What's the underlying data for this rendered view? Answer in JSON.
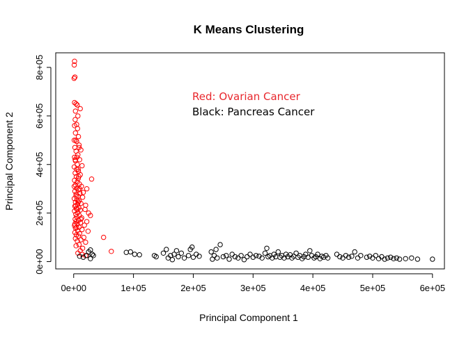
{
  "chart_data": {
    "type": "scatter",
    "title": "K Means Clustering",
    "xlabel": "Principal Component 1",
    "ylabel": "Principal Component 2",
    "xlim": [
      -30000,
      620000
    ],
    "ylim": [
      -30000,
      860000
    ],
    "x_ticks": [
      0,
      100000,
      200000,
      300000,
      400000,
      500000,
      600000
    ],
    "x_tick_labels": [
      "0e+00",
      "1e+05",
      "2e+05",
      "3e+05",
      "4e+05",
      "5e+05",
      "6e+05"
    ],
    "y_ticks": [
      0,
      200000,
      400000,
      600000,
      800000
    ],
    "y_tick_labels": [
      "0e+00",
      "2e+05",
      "4e+05",
      "6e+05",
      "8e+05"
    ],
    "grid": false,
    "legend": "none",
    "annotations": [
      {
        "text": "Red: Ovarian Cancer",
        "color": "#e8272d"
      },
      {
        "text": "Black: Pancreas Cancer",
        "color": "#000000"
      }
    ],
    "series": [
      {
        "color": "#ff0000",
        "points": [
          [
            1500,
            825000
          ],
          [
            1000,
            810000
          ],
          [
            2000,
            760000
          ],
          [
            800,
            755000
          ],
          [
            1500,
            655000
          ],
          [
            4000,
            650000
          ],
          [
            6000,
            645000
          ],
          [
            11000,
            630000
          ],
          [
            3000,
            620000
          ],
          [
            7000,
            600000
          ],
          [
            2500,
            585000
          ],
          [
            5000,
            565000
          ],
          [
            1500,
            560000
          ],
          [
            6500,
            548000
          ],
          [
            3000,
            530000
          ],
          [
            8000,
            515000
          ],
          [
            1000,
            500000
          ],
          [
            5000,
            495000
          ],
          [
            9000,
            480000
          ],
          [
            2000,
            470000
          ],
          [
            12000,
            460000
          ],
          [
            4000,
            455000
          ],
          [
            7000,
            440000
          ],
          [
            1500,
            430000
          ],
          [
            10000,
            420000
          ],
          [
            3000,
            415000
          ],
          [
            6000,
            400000
          ],
          [
            14000,
            395000
          ],
          [
            1000,
            390000
          ],
          [
            5000,
            380000
          ],
          [
            8000,
            372000
          ],
          [
            2500,
            365000
          ],
          [
            11000,
            358000
          ],
          [
            4500,
            350000
          ],
          [
            7500,
            342000
          ],
          [
            30000,
            340000
          ],
          [
            1500,
            335000
          ],
          [
            6000,
            328000
          ],
          [
            9500,
            320000
          ],
          [
            3000,
            315000
          ],
          [
            13000,
            310000
          ],
          [
            5000,
            302000
          ],
          [
            22000,
            300000
          ],
          [
            8000,
            295000
          ],
          [
            2000,
            290000
          ],
          [
            10500,
            282000
          ],
          [
            4000,
            278000
          ],
          [
            7000,
            270000
          ],
          [
            15000,
            265000
          ],
          [
            1000,
            260000
          ],
          [
            5500,
            255000
          ],
          [
            9000,
            250000
          ],
          [
            3000,
            245000
          ],
          [
            12000,
            240000
          ],
          [
            6500,
            235000
          ],
          [
            20000,
            232000
          ],
          [
            2000,
            228000
          ],
          [
            8500,
            222000
          ],
          [
            4500,
            218000
          ],
          [
            11000,
            212000
          ],
          [
            1500,
            208000
          ],
          [
            7000,
            202000
          ],
          [
            25000,
            200000
          ],
          [
            3500,
            195000
          ],
          [
            9500,
            190000
          ],
          [
            5000,
            185000
          ],
          [
            13500,
            180000
          ],
          [
            2500,
            175000
          ],
          [
            8000,
            170000
          ],
          [
            28000,
            190000
          ],
          [
            4000,
            165000
          ],
          [
            11500,
            160000
          ],
          [
            6000,
            155000
          ],
          [
            18000,
            150000
          ],
          [
            1500,
            148000
          ],
          [
            9000,
            142000
          ],
          [
            3000,
            138000
          ],
          [
            14000,
            132000
          ],
          [
            6500,
            128000
          ],
          [
            24000,
            125000
          ],
          [
            2000,
            120000
          ],
          [
            10000,
            115000
          ],
          [
            4500,
            110000
          ],
          [
            8000,
            105000
          ],
          [
            17000,
            100000
          ],
          [
            50000,
            100000
          ],
          [
            3000,
            95000
          ],
          [
            12000,
            90000
          ],
          [
            6000,
            85000
          ],
          [
            20000,
            80000
          ],
          [
            9000,
            70000
          ],
          [
            4000,
            65000
          ],
          [
            15000,
            55000
          ],
          [
            11000,
            45000
          ],
          [
            63000,
            42000
          ],
          [
            7000,
            35000
          ],
          [
            14000,
            30000
          ],
          [
            20000,
            25000
          ],
          [
            2500,
            420000
          ],
          [
            7500,
            380000
          ],
          [
            3500,
            500000
          ],
          [
            9000,
            470000
          ],
          [
            5500,
            430000
          ],
          [
            1000,
            310000
          ],
          [
            4000,
            270000
          ],
          [
            10000,
            300000
          ],
          [
            6000,
            215000
          ],
          [
            12000,
            175000
          ],
          [
            2000,
            155000
          ],
          [
            7500,
            245000
          ],
          [
            16000,
            285000
          ],
          [
            19000,
            215000
          ],
          [
            5000,
            140000
          ],
          [
            22000,
            165000
          ],
          [
            8500,
            350000
          ],
          [
            3500,
            230000
          ]
        ]
      },
      {
        "color": "#000000",
        "points": [
          [
            10000,
            22000
          ],
          [
            16000,
            18000
          ],
          [
            22000,
            25000
          ],
          [
            25000,
            40000
          ],
          [
            28000,
            48000
          ],
          [
            31000,
            30000
          ],
          [
            28000,
            12000
          ],
          [
            33000,
            25000
          ],
          [
            88000,
            38000
          ],
          [
            95000,
            40000
          ],
          [
            102000,
            30000
          ],
          [
            110000,
            28000
          ],
          [
            135000,
            25000
          ],
          [
            138000,
            20000
          ],
          [
            150000,
            35000
          ],
          [
            155000,
            50000
          ],
          [
            158000,
            15000
          ],
          [
            162000,
            25000
          ],
          [
            165000,
            8000
          ],
          [
            168000,
            30000
          ],
          [
            172000,
            45000
          ],
          [
            175000,
            20000
          ],
          [
            180000,
            35000
          ],
          [
            185000,
            15000
          ],
          [
            192000,
            25000
          ],
          [
            195000,
            50000
          ],
          [
            198000,
            60000
          ],
          [
            200000,
            18000
          ],
          [
            205000,
            30000
          ],
          [
            210000,
            22000
          ],
          [
            230000,
            40000
          ],
          [
            232000,
            10000
          ],
          [
            235000,
            25000
          ],
          [
            238000,
            50000
          ],
          [
            240000,
            15000
          ],
          [
            245000,
            70000
          ],
          [
            250000,
            20000
          ],
          [
            255000,
            25000
          ],
          [
            260000,
            10000
          ],
          [
            265000,
            30000
          ],
          [
            270000,
            20000
          ],
          [
            275000,
            15000
          ],
          [
            280000,
            25000
          ],
          [
            285000,
            8000
          ],
          [
            290000,
            20000
          ],
          [
            295000,
            30000
          ],
          [
            300000,
            18000
          ],
          [
            305000,
            25000
          ],
          [
            310000,
            22000
          ],
          [
            315000,
            15000
          ],
          [
            320000,
            35000
          ],
          [
            323000,
            55000
          ],
          [
            325000,
            20000
          ],
          [
            328000,
            25000
          ],
          [
            332000,
            15000
          ],
          [
            335000,
            30000
          ],
          [
            338000,
            20000
          ],
          [
            342000,
            40000
          ],
          [
            345000,
            18000
          ],
          [
            348000,
            25000
          ],
          [
            352000,
            15000
          ],
          [
            355000,
            30000
          ],
          [
            358000,
            20000
          ],
          [
            362000,
            28000
          ],
          [
            365000,
            15000
          ],
          [
            368000,
            22000
          ],
          [
            372000,
            35000
          ],
          [
            375000,
            18000
          ],
          [
            378000,
            25000
          ],
          [
            382000,
            12000
          ],
          [
            385000,
            20000
          ],
          [
            388000,
            30000
          ],
          [
            392000,
            18000
          ],
          [
            395000,
            45000
          ],
          [
            398000,
            25000
          ],
          [
            402000,
            15000
          ],
          [
            405000,
            20000
          ],
          [
            408000,
            30000
          ],
          [
            412000,
            12000
          ],
          [
            415000,
            22000
          ],
          [
            418000,
            18000
          ],
          [
            422000,
            25000
          ],
          [
            425000,
            15000
          ],
          [
            440000,
            30000
          ],
          [
            445000,
            20000
          ],
          [
            450000,
            15000
          ],
          [
            455000,
            25000
          ],
          [
            460000,
            18000
          ],
          [
            465000,
            22000
          ],
          [
            470000,
            40000
          ],
          [
            475000,
            15000
          ],
          [
            480000,
            25000
          ],
          [
            490000,
            18000
          ],
          [
            495000,
            22000
          ],
          [
            500000,
            15000
          ],
          [
            505000,
            25000
          ],
          [
            510000,
            12000
          ],
          [
            515000,
            20000
          ],
          [
            520000,
            10000
          ],
          [
            525000,
            15000
          ],
          [
            530000,
            18000
          ],
          [
            535000,
            12000
          ],
          [
            540000,
            15000
          ],
          [
            545000,
            10000
          ],
          [
            555000,
            12000
          ],
          [
            565000,
            15000
          ],
          [
            575000,
            10000
          ],
          [
            600000,
            10000
          ]
        ]
      }
    ]
  }
}
